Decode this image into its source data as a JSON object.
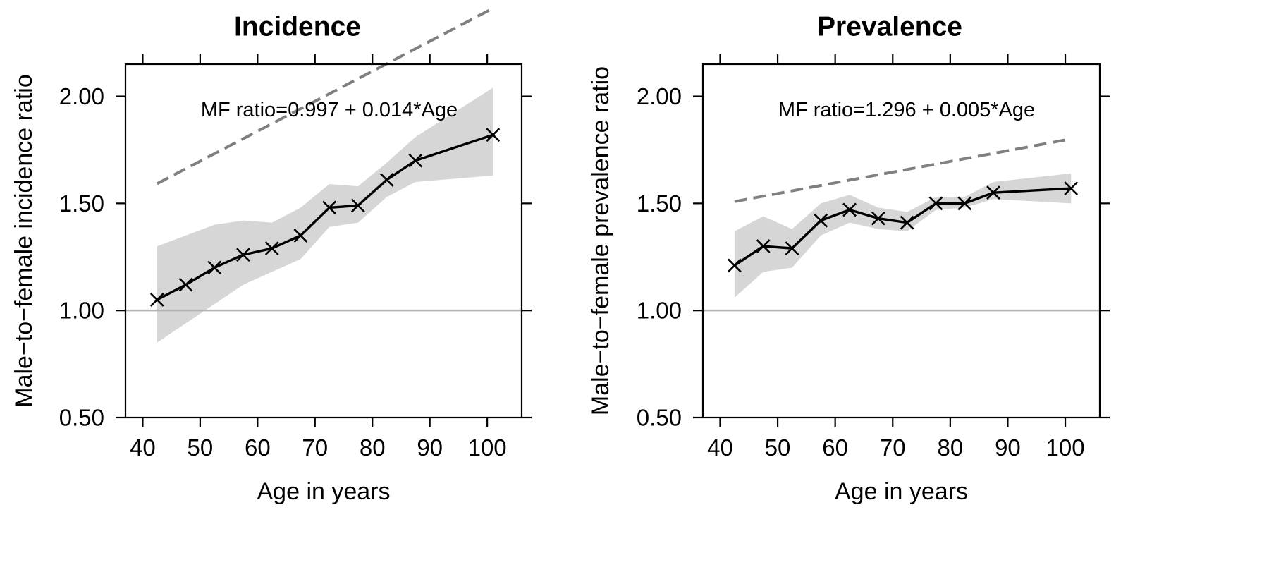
{
  "chart_data": [
    {
      "type": "line",
      "title": "Incidence",
      "xlabel": "Age in years",
      "ylabel": "Male−to−female incidence ratio",
      "annotation": "MF ratio=0.997 + 0.014*Age",
      "xlim": [
        37,
        106
      ],
      "ylim": [
        0.5,
        2.15
      ],
      "xticks": [
        40,
        50,
        60,
        70,
        80,
        90,
        100
      ],
      "xtick_labels": [
        "40",
        "50",
        "60",
        "70",
        "80",
        "90",
        "100"
      ],
      "yticks": [
        0.5,
        1.0,
        1.5,
        2.0
      ],
      "ytick_labels": [
        "0.50",
        "1.00",
        "1.50",
        "2.00"
      ],
      "reference_line": 1.0,
      "grid": false,
      "series": [
        {
          "x": [
            42.5,
            47.5,
            52.5,
            57.5,
            62.5,
            67.5,
            72.5,
            77.5,
            82.5,
            87.5,
            101
          ],
          "values": [
            1.05,
            1.12,
            1.2,
            1.26,
            1.29,
            1.35,
            1.48,
            1.49,
            1.61,
            1.7,
            1.82
          ],
          "lower": [
            0.85,
            0.94,
            1.03,
            1.12,
            1.18,
            1.24,
            1.39,
            1.41,
            1.53,
            1.6,
            1.63
          ],
          "upper": [
            1.3,
            1.35,
            1.4,
            1.42,
            1.41,
            1.48,
            1.59,
            1.58,
            1.69,
            1.81,
            2.04
          ]
        }
      ],
      "fit": {
        "intercept": 0.997,
        "slope": 0.014
      }
    },
    {
      "type": "line",
      "title": "Prevalence",
      "xlabel": "Age in years",
      "ylabel": "Male−to−female prevalence ratio",
      "annotation": "MF ratio=1.296 + 0.005*Age",
      "xlim": [
        37,
        106
      ],
      "ylim": [
        0.5,
        2.15
      ],
      "xticks": [
        40,
        50,
        60,
        70,
        80,
        90,
        100
      ],
      "xtick_labels": [
        "40",
        "50",
        "60",
        "70",
        "80",
        "90",
        "100"
      ],
      "yticks": [
        0.5,
        1.0,
        1.5,
        2.0
      ],
      "ytick_labels": [
        "0.50",
        "1.00",
        "1.50",
        "2.00"
      ],
      "reference_line": 1.0,
      "grid": false,
      "series": [
        {
          "x": [
            42.5,
            47.5,
            52.5,
            57.5,
            62.5,
            67.5,
            72.5,
            77.5,
            82.5,
            87.5,
            101
          ],
          "values": [
            1.21,
            1.3,
            1.29,
            1.42,
            1.47,
            1.43,
            1.41,
            1.5,
            1.5,
            1.55,
            1.57
          ],
          "lower": [
            1.06,
            1.18,
            1.2,
            1.35,
            1.41,
            1.38,
            1.37,
            1.47,
            1.48,
            1.52,
            1.5
          ],
          "upper": [
            1.37,
            1.44,
            1.38,
            1.5,
            1.54,
            1.48,
            1.46,
            1.53,
            1.53,
            1.6,
            1.64
          ]
        }
      ],
      "fit": {
        "intercept": 1.296,
        "slope": 0.005
      }
    }
  ]
}
